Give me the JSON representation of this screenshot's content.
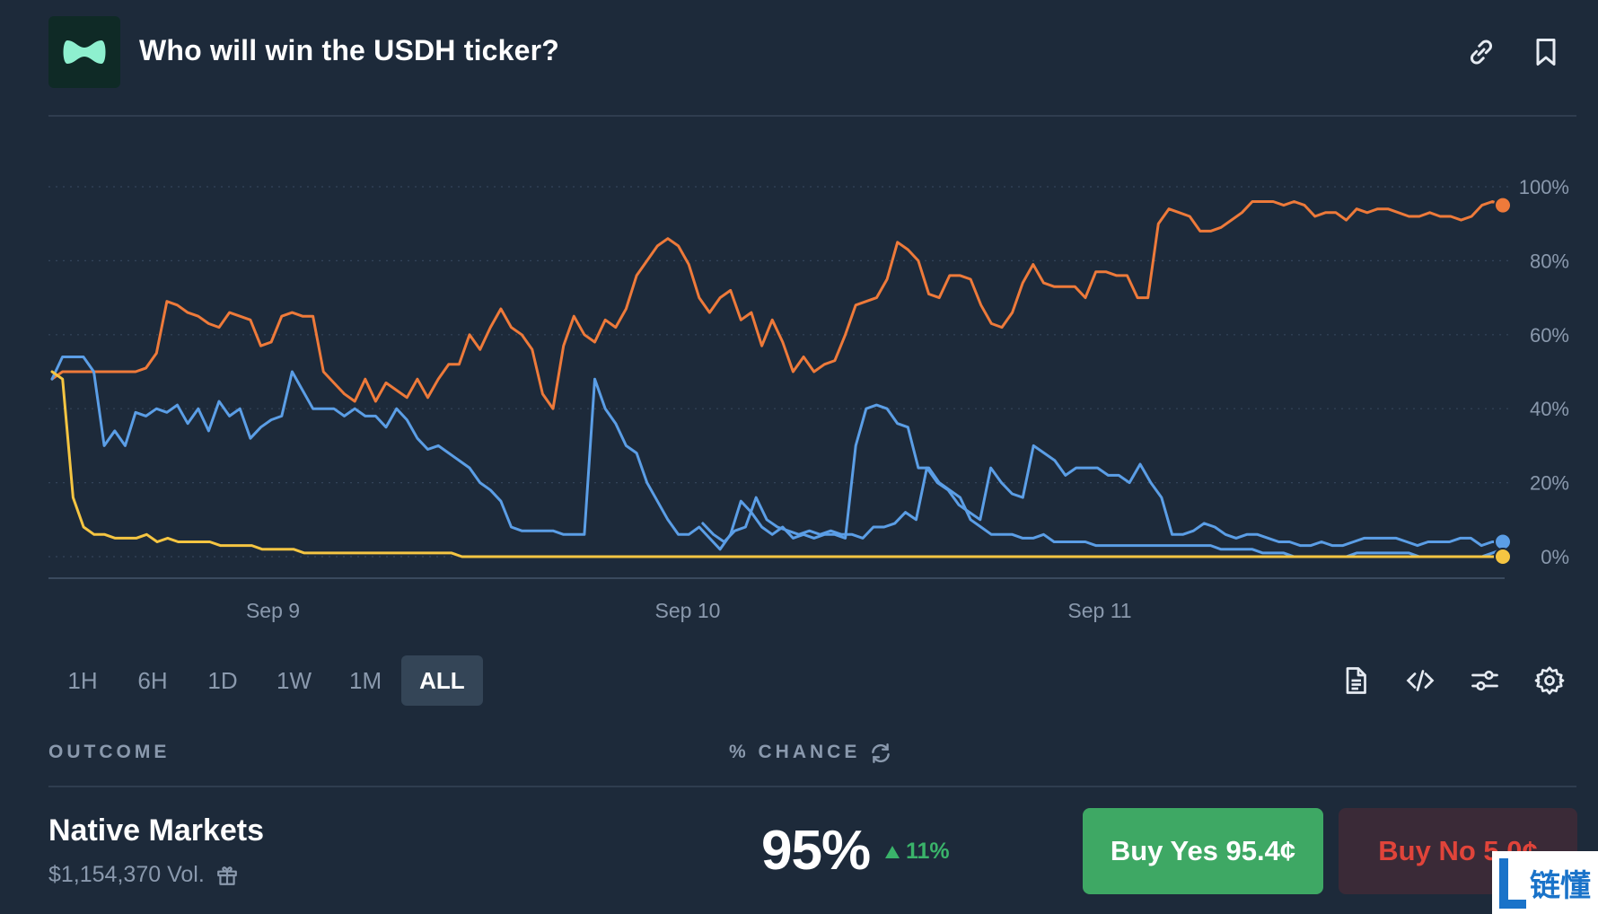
{
  "header": {
    "title": "Who will win the USDH ticker?",
    "logo_icon": "brand-logo-icon",
    "link_icon": "link-icon",
    "bookmark_icon": "bookmark-icon"
  },
  "chart_data": {
    "type": "line",
    "x_ticks": [
      "Sep 9",
      "Sep 10",
      "Sep 11"
    ],
    "y_ticks": [
      "100%",
      "80%",
      "60%",
      "40%",
      "20%",
      "0%"
    ],
    "ylim": [
      0,
      100
    ],
    "grid": true,
    "series": [
      {
        "color": "#ee7a3a",
        "values": [
          48,
          50,
          50,
          50,
          50,
          50,
          50,
          50,
          50,
          51,
          55,
          69,
          68,
          66,
          65,
          63,
          62,
          66,
          65,
          64,
          57,
          58,
          65,
          66,
          65,
          65,
          50,
          47,
          44,
          42,
          48,
          42,
          47,
          45,
          43,
          48,
          43,
          48,
          52,
          52,
          60,
          56,
          62,
          67,
          62,
          60,
          56,
          44,
          40,
          57,
          65,
          60,
          58,
          64,
          62,
          67,
          76,
          80,
          84,
          86,
          84,
          79,
          70,
          66,
          70,
          72,
          64,
          66,
          57,
          64,
          58,
          50,
          54,
          50,
          52,
          53,
          60,
          68,
          69,
          70,
          75,
          85,
          83,
          80,
          71,
          70,
          76,
          76,
          75,
          68,
          63,
          62,
          66,
          74,
          79,
          74,
          73,
          73,
          73,
          70,
          77,
          77,
          76,
          76,
          70,
          70,
          90,
          94,
          93,
          92,
          88,
          88,
          89,
          91,
          93,
          96,
          96,
          96,
          95,
          96,
          95,
          92,
          93,
          93,
          91,
          94,
          93,
          94,
          94,
          93,
          92,
          92,
          93,
          92,
          92,
          91,
          92,
          95,
          96,
          95
        ]
      },
      {
        "color": "#5b9ee6",
        "values": [
          48,
          54,
          54,
          54,
          50,
          30,
          34,
          30,
          39,
          38,
          40,
          39,
          41,
          36,
          40,
          34,
          42,
          38,
          40,
          32,
          35,
          37,
          38,
          50,
          45,
          40,
          40,
          40,
          38,
          40,
          38,
          38,
          35,
          40,
          37,
          32,
          29,
          30,
          28,
          26,
          24,
          20,
          18,
          15,
          8,
          7,
          7,
          7,
          7,
          6,
          6,
          6,
          48,
          40,
          36,
          30,
          28,
          20,
          15,
          10,
          6,
          6,
          8,
          5,
          2,
          6,
          15,
          12,
          8,
          6,
          8,
          5,
          6,
          5,
          6,
          6,
          5,
          30,
          40,
          41,
          40,
          36,
          35,
          24,
          24,
          20,
          18,
          16,
          10,
          8,
          6,
          6,
          6,
          5,
          5,
          6,
          4,
          4,
          4,
          4,
          3,
          3,
          3,
          3,
          3,
          3,
          3,
          3,
          3,
          3,
          3,
          3,
          2,
          2,
          2,
          2,
          1,
          1,
          1,
          0,
          0,
          0,
          0,
          0,
          0,
          1,
          1,
          1,
          1,
          1,
          1,
          0,
          0,
          0,
          0,
          0,
          0,
          0,
          1,
          2
        ]
      },
      {
        "color": "#5b9ee6",
        "values": [
          null,
          null,
          null,
          null,
          null,
          null,
          null,
          null,
          null,
          null,
          null,
          null,
          null,
          null,
          null,
          null,
          null,
          null,
          null,
          null,
          null,
          null,
          null,
          null,
          null,
          null,
          null,
          null,
          null,
          null,
          null,
          null,
          null,
          null,
          null,
          null,
          null,
          null,
          null,
          null,
          null,
          null,
          null,
          null,
          null,
          null,
          null,
          null,
          null,
          null,
          null,
          null,
          null,
          null,
          null,
          null,
          null,
          null,
          null,
          null,
          null,
          9,
          6,
          4,
          7,
          8,
          16,
          10,
          8,
          7,
          6,
          7,
          6,
          7,
          6,
          6,
          5,
          8,
          8,
          9,
          12,
          10,
          24,
          20,
          18,
          14,
          12,
          10,
          24,
          20,
          17,
          16,
          30,
          28,
          26,
          22,
          24,
          24,
          24,
          22,
          22,
          20,
          25,
          20,
          16,
          6,
          6,
          7,
          9,
          8,
          6,
          5,
          6,
          6,
          5,
          4,
          4,
          3,
          3,
          4,
          3,
          3,
          4,
          5,
          5,
          5,
          5,
          4,
          3,
          4,
          4,
          4,
          5,
          5,
          3,
          4,
          4
        ]
      },
      {
        "color": "#f5c542",
        "values": [
          50,
          48,
          16,
          8,
          6,
          6,
          5,
          5,
          5,
          6,
          4,
          5,
          4,
          4,
          4,
          4,
          3,
          3,
          3,
          3,
          2,
          2,
          2,
          2,
          1,
          1,
          1,
          1,
          1,
          1,
          1,
          1,
          1,
          1,
          1,
          1,
          1,
          1,
          1,
          0,
          0,
          0,
          0,
          0,
          0,
          0,
          0,
          0,
          0,
          0,
          0,
          0,
          0,
          0,
          0,
          0,
          0,
          0,
          0,
          0,
          0,
          0,
          0,
          0,
          0,
          0,
          0,
          0,
          0,
          0,
          0,
          0,
          0,
          0,
          0,
          0,
          0,
          0,
          0,
          0,
          0,
          0,
          0,
          0,
          0,
          0,
          0,
          0,
          0,
          0,
          0,
          0,
          0,
          0,
          0,
          0,
          0,
          0,
          0,
          0,
          0,
          0,
          0,
          0,
          0,
          0,
          0,
          0,
          0,
          0,
          0,
          0,
          0,
          0,
          0,
          0,
          0,
          0,
          0,
          0,
          0,
          0,
          0,
          0,
          0,
          0,
          0,
          0,
          0,
          0,
          0,
          0,
          0,
          0,
          0,
          0,
          0,
          0,
          0
        ]
      }
    ]
  },
  "time_ranges": [
    "1H",
    "6H",
    "1D",
    "1W",
    "1M",
    "ALL"
  ],
  "active_range": "ALL",
  "tools": [
    "document-icon",
    "embed-code-icon",
    "sliders-icon",
    "settings-icon"
  ],
  "table": {
    "outcome_header": "OUTCOME",
    "chance_header": "% CHANCE",
    "refresh_icon": "refresh-icon"
  },
  "outcome": {
    "name": "Native Markets",
    "volume": "$1,154,370 Vol.",
    "gift_icon": "gift-icon",
    "chance": "95%",
    "delta": "11%",
    "delta_icon": "triangle-up-icon",
    "buy_yes": "Buy Yes 95.4¢",
    "buy_no": "Buy No 5.0¢",
    "yes_color": "#3ea864",
    "no_color": "#e0443a"
  },
  "watermark": {
    "text": "链懂"
  }
}
